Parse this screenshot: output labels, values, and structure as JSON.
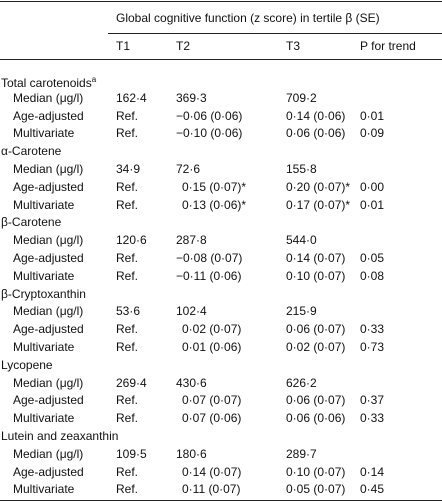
{
  "header": {
    "title": "Global cognitive function (z score) in tertile β (SE)",
    "columns": [
      "T1",
      "T2",
      "T3",
      "P for trend"
    ]
  },
  "groups": [
    {
      "name": "Total carotenoids",
      "note": "a",
      "rows": [
        {
          "label": "Median (μg/l)",
          "cells": [
            "162·4",
            "369·3",
            "709·2"
          ]
        },
        {
          "label": "Age-adjusted",
          "cells": [
            "Ref.",
            "−0·06 (0·06)",
            "0·14 (0·06)",
            "0·01"
          ]
        },
        {
          "label": "Multivariate",
          "cells": [
            "Ref.",
            "−0·10 (0·06)",
            "0·06 (0·06)",
            "0·09"
          ]
        }
      ]
    },
    {
      "name": "α-Carotene",
      "rows": [
        {
          "label": "Median (μg/l)",
          "cells": [
            "34·9",
            "72·6",
            "155·8"
          ]
        },
        {
          "label": "Age-adjusted",
          "cells": [
            "Ref.",
            "0·15 (0·07)*",
            "0·20 (0·07)*",
            "0·00"
          ]
        },
        {
          "label": "Multivariate",
          "cells": [
            "Ref.",
            "0·13 (0·06)*",
            "0·17 (0·07)*",
            "0·01"
          ]
        }
      ]
    },
    {
      "name": "β-Carotene",
      "rows": [
        {
          "label": "Median (μg/l)",
          "cells": [
            "120·6",
            "287·8",
            "544·0"
          ]
        },
        {
          "label": "Age-adjusted",
          "cells": [
            "Ref.",
            "−0·08 (0·07)",
            "0·14 (0·07)",
            "0·05"
          ]
        },
        {
          "label": "Multivariate",
          "cells": [
            "Ref.",
            "−0·11 (0·06)",
            "0·10 (0·07)",
            "0·08"
          ]
        }
      ]
    },
    {
      "name": "β-Cryptoxanthin",
      "rows": [
        {
          "label": "Median (μg/l)",
          "cells": [
            "53·6",
            "102·4",
            "215·9"
          ]
        },
        {
          "label": "Age-adjusted",
          "cells": [
            "Ref.",
            "0·02 (0·07)",
            "0·06 (0·07)",
            "0·33"
          ]
        },
        {
          "label": "Multivariate",
          "cells": [
            "Ref.",
            "0·01 (0·06)",
            "0·02 (0·07)",
            "0·73"
          ]
        }
      ]
    },
    {
      "name": "Lycopene",
      "rows": [
        {
          "label": "Median (μg/l)",
          "cells": [
            "269·4",
            "430·6",
            "626·2"
          ]
        },
        {
          "label": "Age-adjusted",
          "cells": [
            "Ref.",
            "0·07 (0·07)",
            "0·06 (0·07)",
            "0·37"
          ]
        },
        {
          "label": "Multivariate",
          "cells": [
            "Ref.",
            "0·07 (0·06)",
            "0·06 (0·06)",
            "0·33"
          ]
        }
      ]
    },
    {
      "name": "Lutein and zeaxanthin",
      "rows": [
        {
          "label": "Median (μg/l)",
          "cells": [
            "109·5",
            "180·6",
            "289·7"
          ]
        },
        {
          "label": "Age-adjusted",
          "cells": [
            "Ref.",
            "0·14 (0·07)",
            "0·10 (0·07)",
            "0·14"
          ]
        },
        {
          "label": "Multivariate",
          "cells": [
            "Ref.",
            "0·11 (0·07)",
            "0·05 (0·07)",
            "0·45"
          ]
        }
      ]
    }
  ]
}
